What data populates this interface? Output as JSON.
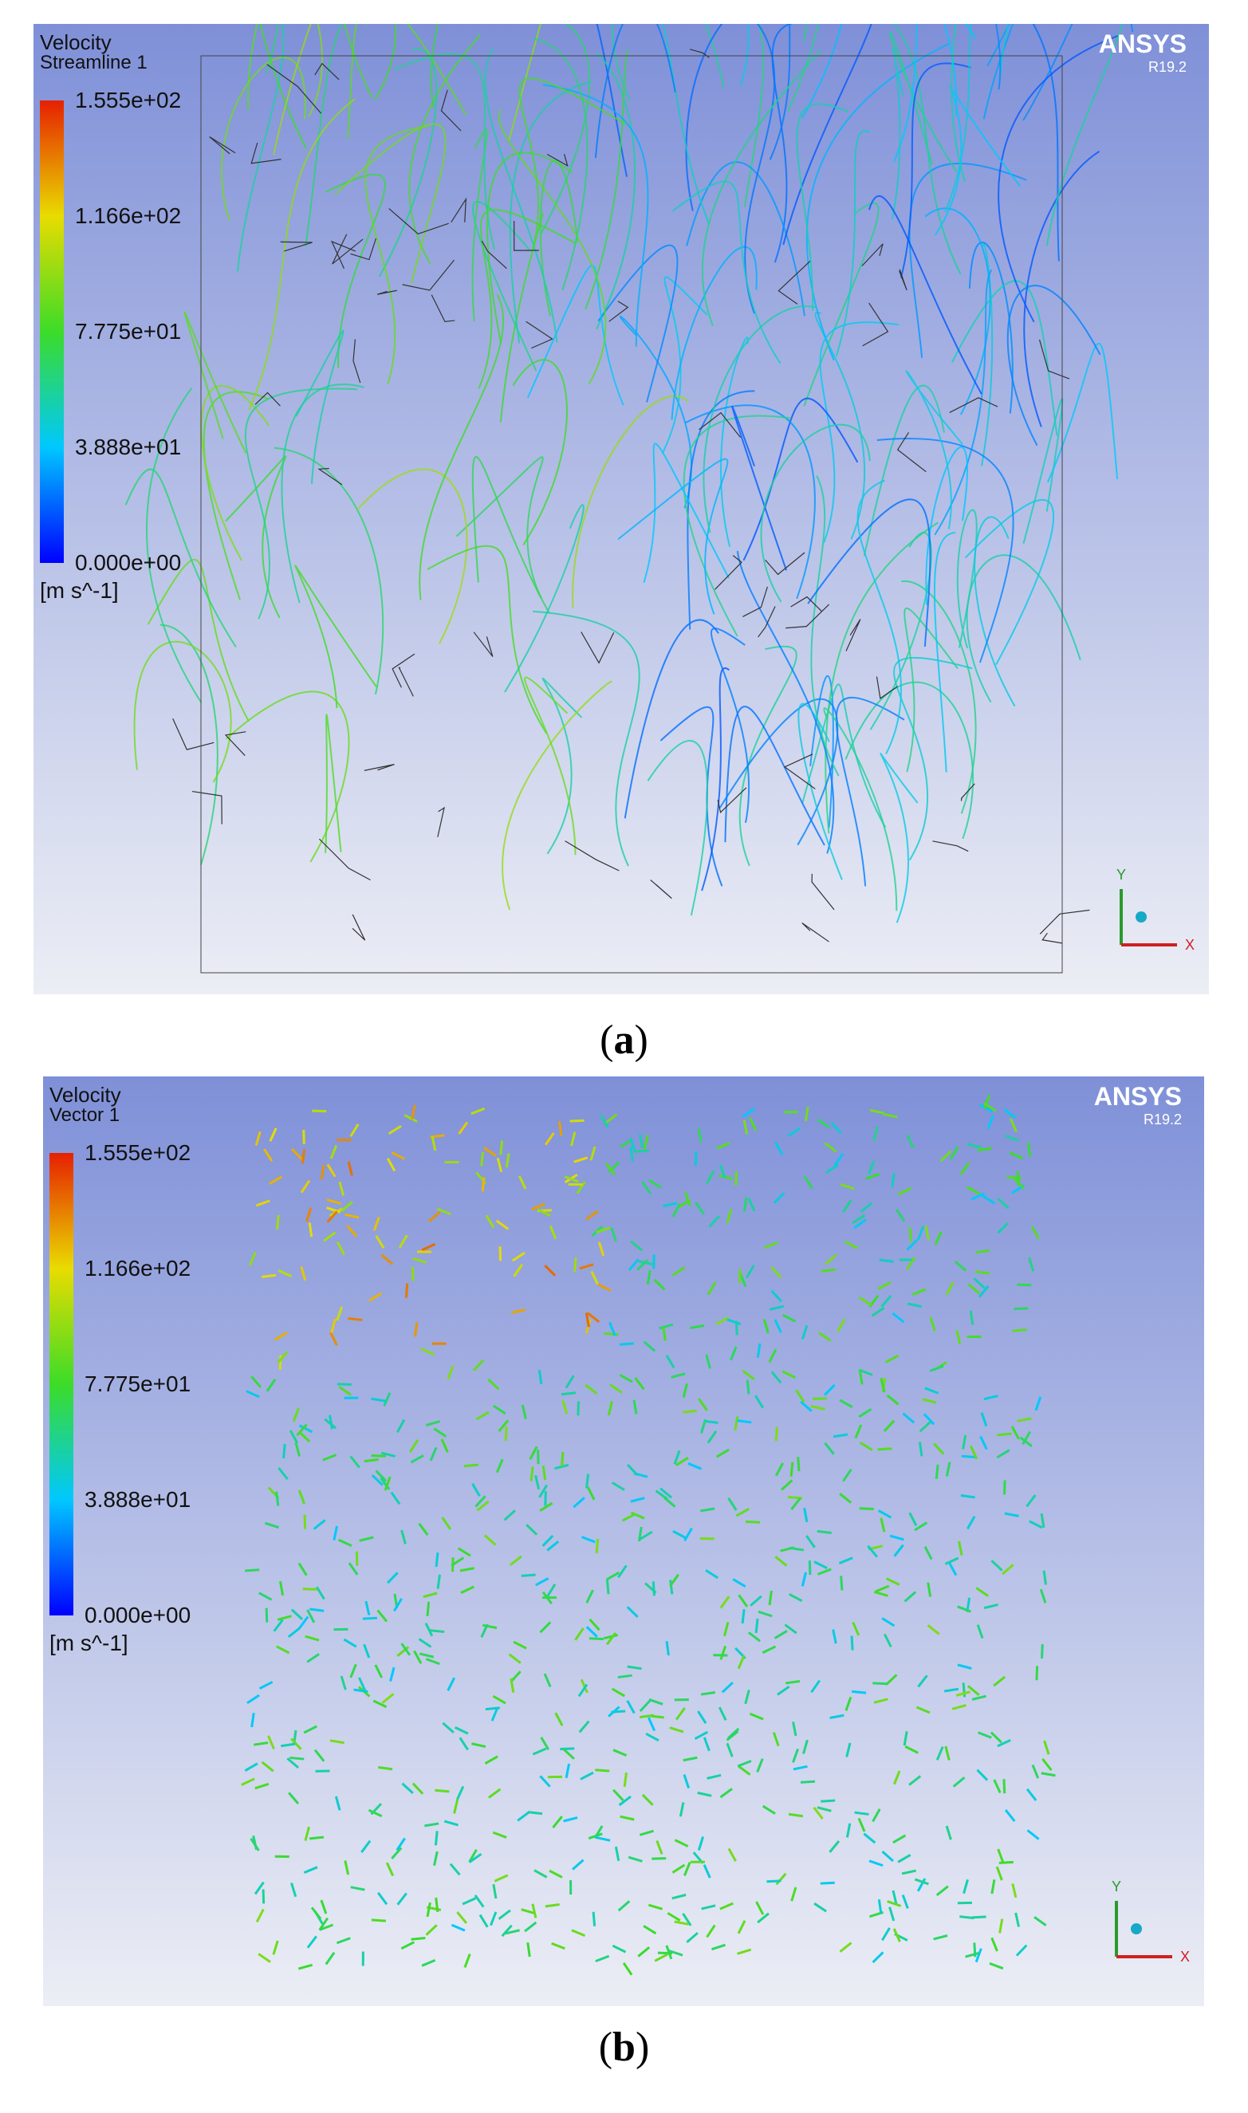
{
  "panels": [
    {
      "legend_title": "Velocity",
      "legend_subtitle": "Streamline 1",
      "ticks": [
        "1.555e+02",
        "1.166e+02",
        "7.775e+01",
        "3.888e+01",
        "0.000e+00"
      ],
      "unit": "[m s^-1]",
      "brand": "ANSYS",
      "version": "R19.2",
      "axis_y": "Y",
      "axis_x": "X",
      "caption_letter": "a"
    },
    {
      "legend_title": "Velocity",
      "legend_subtitle": "Vector 1",
      "ticks": [
        "1.555e+02",
        "1.166e+02",
        "7.775e+01",
        "3.888e+01",
        "0.000e+00"
      ],
      "unit": "[m s^-1]",
      "brand": "ANSYS",
      "version": "R19.2",
      "axis_y": "Y",
      "axis_x": "X",
      "caption_letter": "b"
    }
  ]
}
